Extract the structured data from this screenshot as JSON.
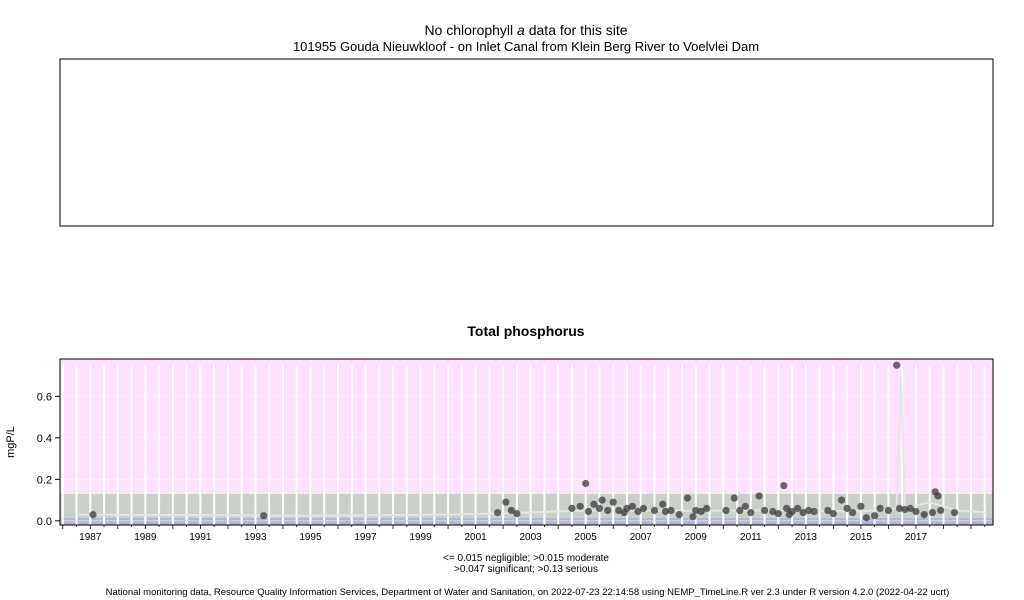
{
  "header": {
    "no_data_prefix": "No chlorophyll ",
    "no_data_italic": "a",
    "no_data_suffix": " data for this site",
    "site_title": "101955 Gouda Nieuwkloof - on Inlet Canal from Klein Berg River to Voelvlei Dam"
  },
  "legend": {
    "line1": "<= 0.015 negligible; >0.015 moderate",
    "line2": ">0.047 significant; >0.13 serious"
  },
  "footer": {
    "text": "National monitoring data, Resource Quality Information Services, Department of Water and Sanitation, on 2022-07-23 22:14:58 using NEMP_TimeLine.R ver 2.3 under R version 4.2.0 (2022-04-22 ucrt)"
  },
  "chart_data": [
    {
      "type": "empty",
      "title": "No chlorophyll a data for this site"
    },
    {
      "type": "scatter",
      "title": "Total phosphorus",
      "ylabel": "mgP/L",
      "xlabel": "",
      "xlim": [
        1985.9,
        2019.8
      ],
      "ylim": [
        -0.02,
        0.78
      ],
      "x_ticks": [
        1987,
        1989,
        1991,
        1993,
        1995,
        1997,
        1999,
        2001,
        2003,
        2005,
        2007,
        2009,
        2011,
        2013,
        2015,
        2017
      ],
      "y_ticks": [
        0.0,
        0.2,
        0.4,
        0.6
      ],
      "thresholds": [
        {
          "label": "negligible",
          "max": 0.015,
          "color": "#b0b8d0"
        },
        {
          "label": "moderate",
          "max": 0.047,
          "color": "#c8d0c8"
        },
        {
          "label": "significant",
          "max": 0.13,
          "color": "#c8d0c8"
        },
        {
          "label": "serious",
          "max": 0.78,
          "color": "#ffe0ff"
        }
      ],
      "x": [
        1987.1,
        1993.3,
        2001.8,
        2002.1,
        2002.3,
        2002.5,
        2004.5,
        2004.8,
        2005.0,
        2005.1,
        2005.3,
        2005.5,
        2005.6,
        2005.8,
        2006.0,
        2006.2,
        2006.4,
        2006.5,
        2006.7,
        2006.9,
        2007.1,
        2007.5,
        2007.8,
        2007.9,
        2008.1,
        2008.4,
        2008.7,
        2008.9,
        2009.0,
        2009.2,
        2009.4,
        2010.1,
        2010.4,
        2010.6,
        2010.8,
        2011.0,
        2011.3,
        2011.5,
        2011.8,
        2012.0,
        2012.2,
        2012.3,
        2012.4,
        2012.5,
        2012.7,
        2012.9,
        2013.1,
        2013.3,
        2013.8,
        2014.0,
        2014.3,
        2014.5,
        2014.7,
        2015.0,
        2015.2,
        2015.5,
        2015.7,
        2016.0,
        2016.3,
        2016.4,
        2016.6,
        2016.8,
        2017.0,
        2017.3,
        2017.6,
        2017.7,
        2017.8,
        2017.9,
        2018.4
      ],
      "y": [
        0.03,
        0.025,
        0.04,
        0.09,
        0.05,
        0.035,
        0.06,
        0.07,
        0.18,
        0.045,
        0.08,
        0.06,
        0.1,
        0.05,
        0.09,
        0.05,
        0.04,
        0.06,
        0.07,
        0.045,
        0.06,
        0.05,
        0.08,
        0.045,
        0.05,
        0.03,
        0.11,
        0.02,
        0.05,
        0.045,
        0.06,
        0.05,
        0.11,
        0.05,
        0.07,
        0.04,
        0.12,
        0.05,
        0.045,
        0.035,
        0.17,
        0.06,
        0.03,
        0.045,
        0.06,
        0.04,
        0.05,
        0.045,
        0.05,
        0.035,
        0.1,
        0.06,
        0.04,
        0.07,
        0.015,
        0.025,
        0.06,
        0.05,
        0.75,
        0.06,
        0.055,
        0.06,
        0.045,
        0.03,
        0.04,
        0.14,
        0.12,
        0.05,
        0.04
      ],
      "trend_x": [
        1986.5,
        1990,
        1995,
        2000,
        2003,
        2005,
        2007,
        2009,
        2011,
        2013,
        2015,
        2016.3,
        2016.45,
        2016.6,
        2017.5,
        2018.5,
        2019.5
      ],
      "trend_y": [
        0.03,
        0.028,
        0.025,
        0.03,
        0.04,
        0.05,
        0.05,
        0.048,
        0.05,
        0.048,
        0.045,
        0.06,
        0.7,
        0.06,
        0.09,
        0.05,
        0.04
      ]
    }
  ]
}
